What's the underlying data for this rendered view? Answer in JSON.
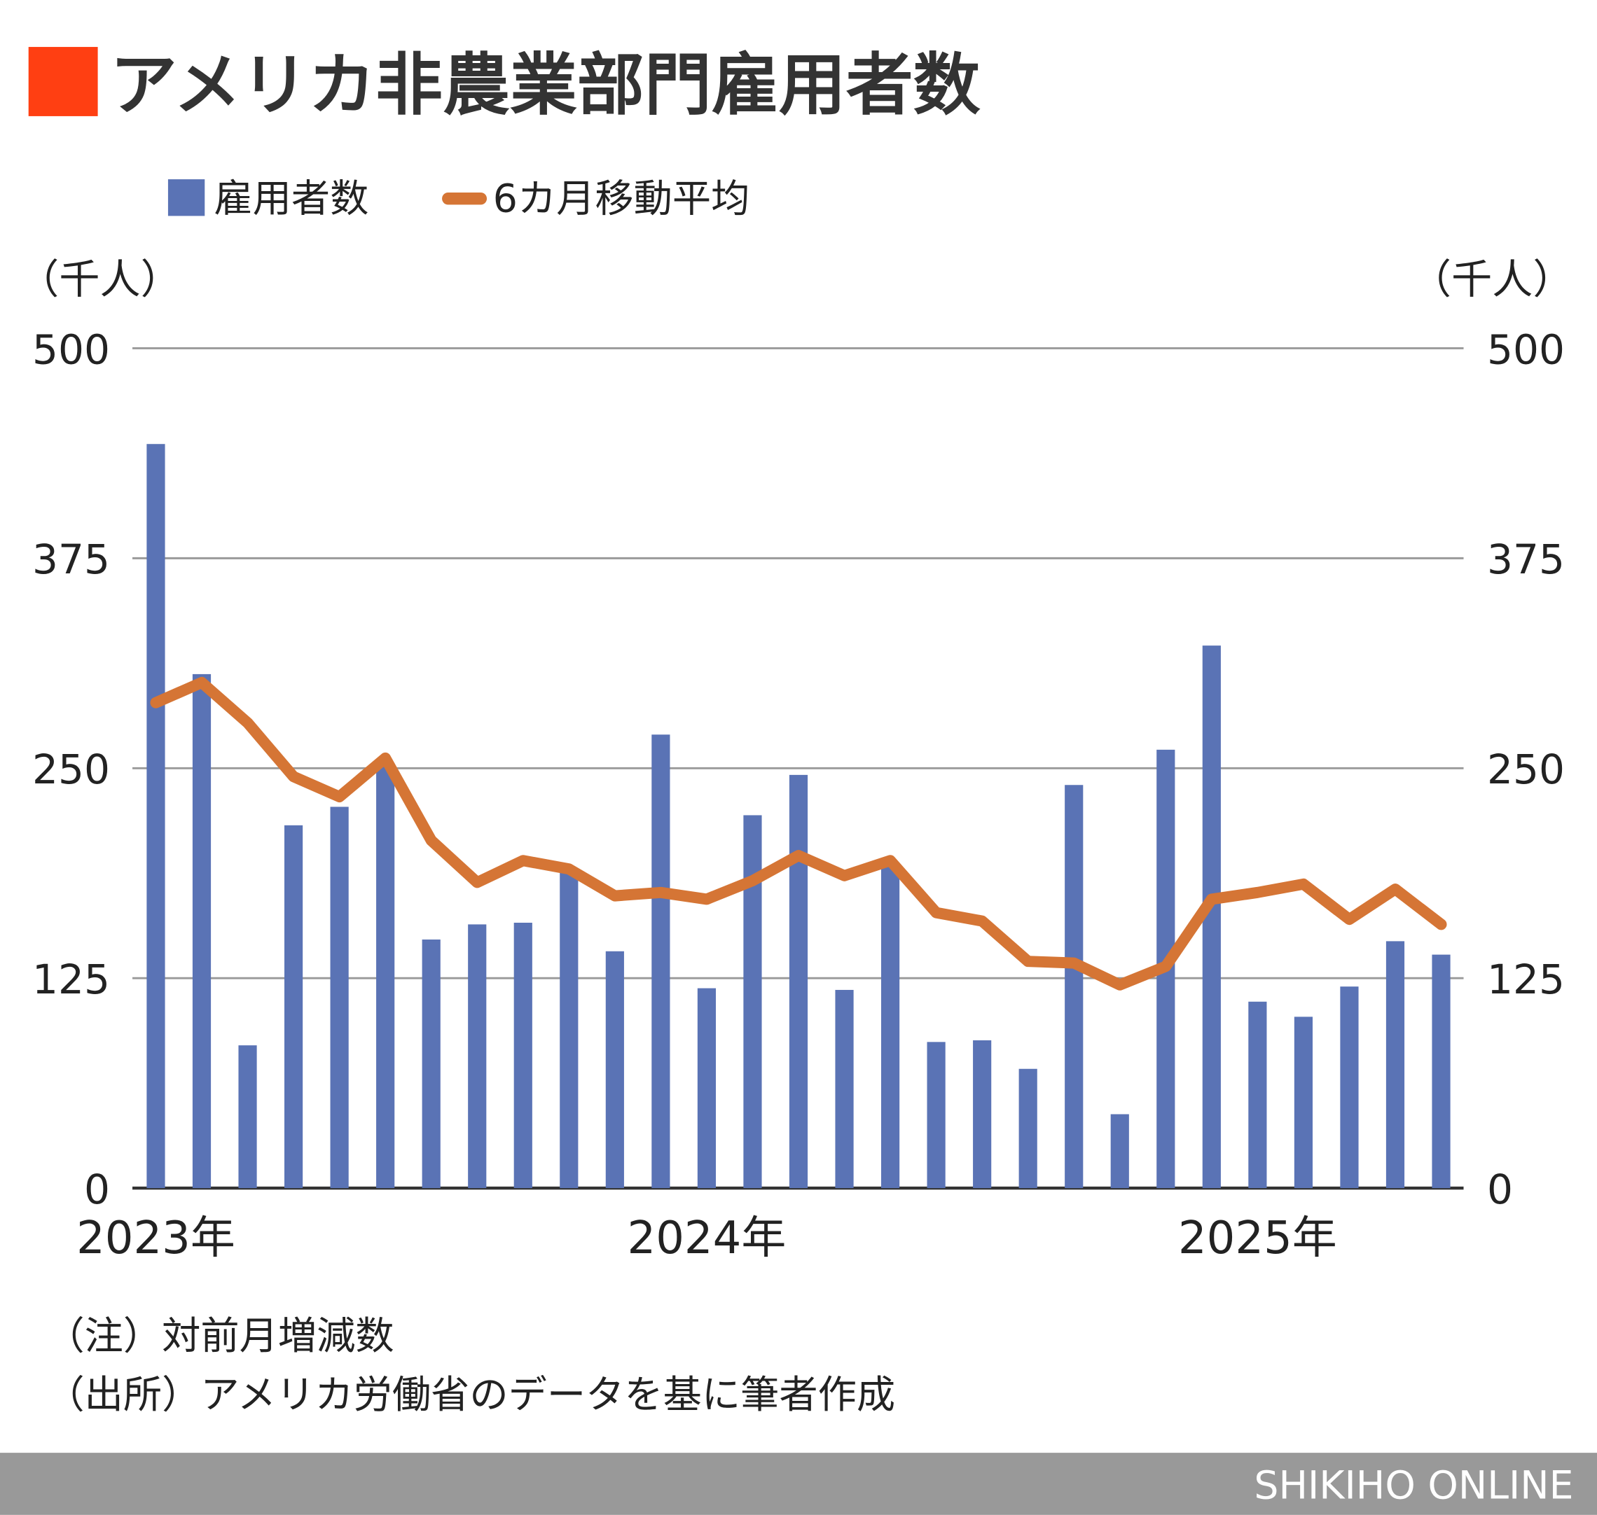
{
  "title": "アメリカ非農業部門雇用者数",
  "colors": {
    "title_marker": "#ff3f12",
    "bar": "#5a73b5",
    "line": "#d57535",
    "grid": "#999999",
    "footer_bg": "#999999"
  },
  "legend": {
    "bar_label": "雇用者数",
    "line_label": "6カ月移動平均"
  },
  "unit_left": "（千人）",
  "unit_right": "（千人）",
  "notes": [
    "（注）対前月増減数",
    "（出所）アメリカ労働省のデータを基に筆者作成"
  ],
  "footer": "SHIKIHO ONLINE",
  "chart_data": {
    "type": "bar+line",
    "x_tick_labels": [
      "2023年",
      "2024年",
      "2025年"
    ],
    "y_ticks": [
      0,
      125,
      250,
      375,
      500
    ],
    "ylim": [
      0,
      500
    ],
    "ylabel": "（千人）",
    "grid": true,
    "legend_position": "top-left",
    "categories": [
      "2023-01",
      "2023-02",
      "2023-03",
      "2023-04",
      "2023-05",
      "2023-06",
      "2023-07",
      "2023-08",
      "2023-09",
      "2023-10",
      "2023-11",
      "2023-12",
      "2024-01",
      "2024-02",
      "2024-03",
      "2024-04",
      "2024-05",
      "2024-06",
      "2024-07",
      "2024-08",
      "2024-09",
      "2024-10",
      "2024-11",
      "2024-12",
      "2025-01",
      "2025-02",
      "2025-03",
      "2025-04",
      "2025-05"
    ],
    "series": [
      {
        "name": "雇用者数",
        "type": "bar",
        "values": [
          443,
          306,
          85,
          216,
          227,
          253,
          148,
          157,
          158,
          189,
          141,
          270,
          119,
          222,
          246,
          118,
          192,
          87,
          88,
          71,
          240,
          44,
          261,
          323,
          111,
          102,
          120,
          147,
          139
        ]
      },
      {
        "name": "6カ月移動平均",
        "type": "line",
        "values": [
          289,
          301,
          277,
          245,
          233,
          256,
          207,
          182,
          195,
          190,
          174,
          176,
          172,
          183,
          198,
          186,
          195,
          164,
          159,
          135,
          134,
          121,
          132,
          172,
          176,
          181,
          160,
          178,
          157
        ]
      }
    ]
  }
}
